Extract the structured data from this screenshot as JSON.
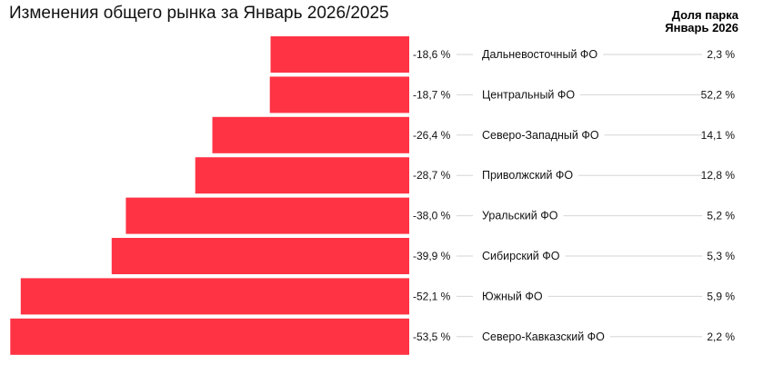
{
  "chart_data": {
    "type": "bar",
    "orientation": "horizontal",
    "title": "Изменения общего рынка за Январь 2026/2025",
    "share_header": "Доля парка Январь 2026",
    "categories": [
      "Дальневосточный ФО",
      "Центральный ФО",
      "Северо-Западный ФО",
      "Приволжский ФО",
      "Уральский ФО",
      "Сибирский ФО",
      "Южный ФО",
      "Северо-Кавказский ФО"
    ],
    "values": [
      -18.6,
      -18.7,
      -26.4,
      -28.7,
      -38.0,
      -39.9,
      -52.1,
      -53.5
    ],
    "value_labels": [
      "-18,6 %",
      "-18,7 %",
      "-26,4 %",
      "-28,7 %",
      "-38,0 %",
      "-39,9 %",
      "-52,1 %",
      "-53,5 %"
    ],
    "share_values": [
      2.3,
      52.2,
      14.1,
      12.8,
      5.2,
      5.3,
      5.9,
      2.2
    ],
    "share_labels": [
      "2,3 %",
      "52,2 %",
      "14,1 %",
      "12,8 %",
      "5,2 %",
      "5,3 %",
      "5,9 %",
      "2,2 %"
    ],
    "bar_color": "#ff3344",
    "grid": false,
    "legend": "none"
  }
}
